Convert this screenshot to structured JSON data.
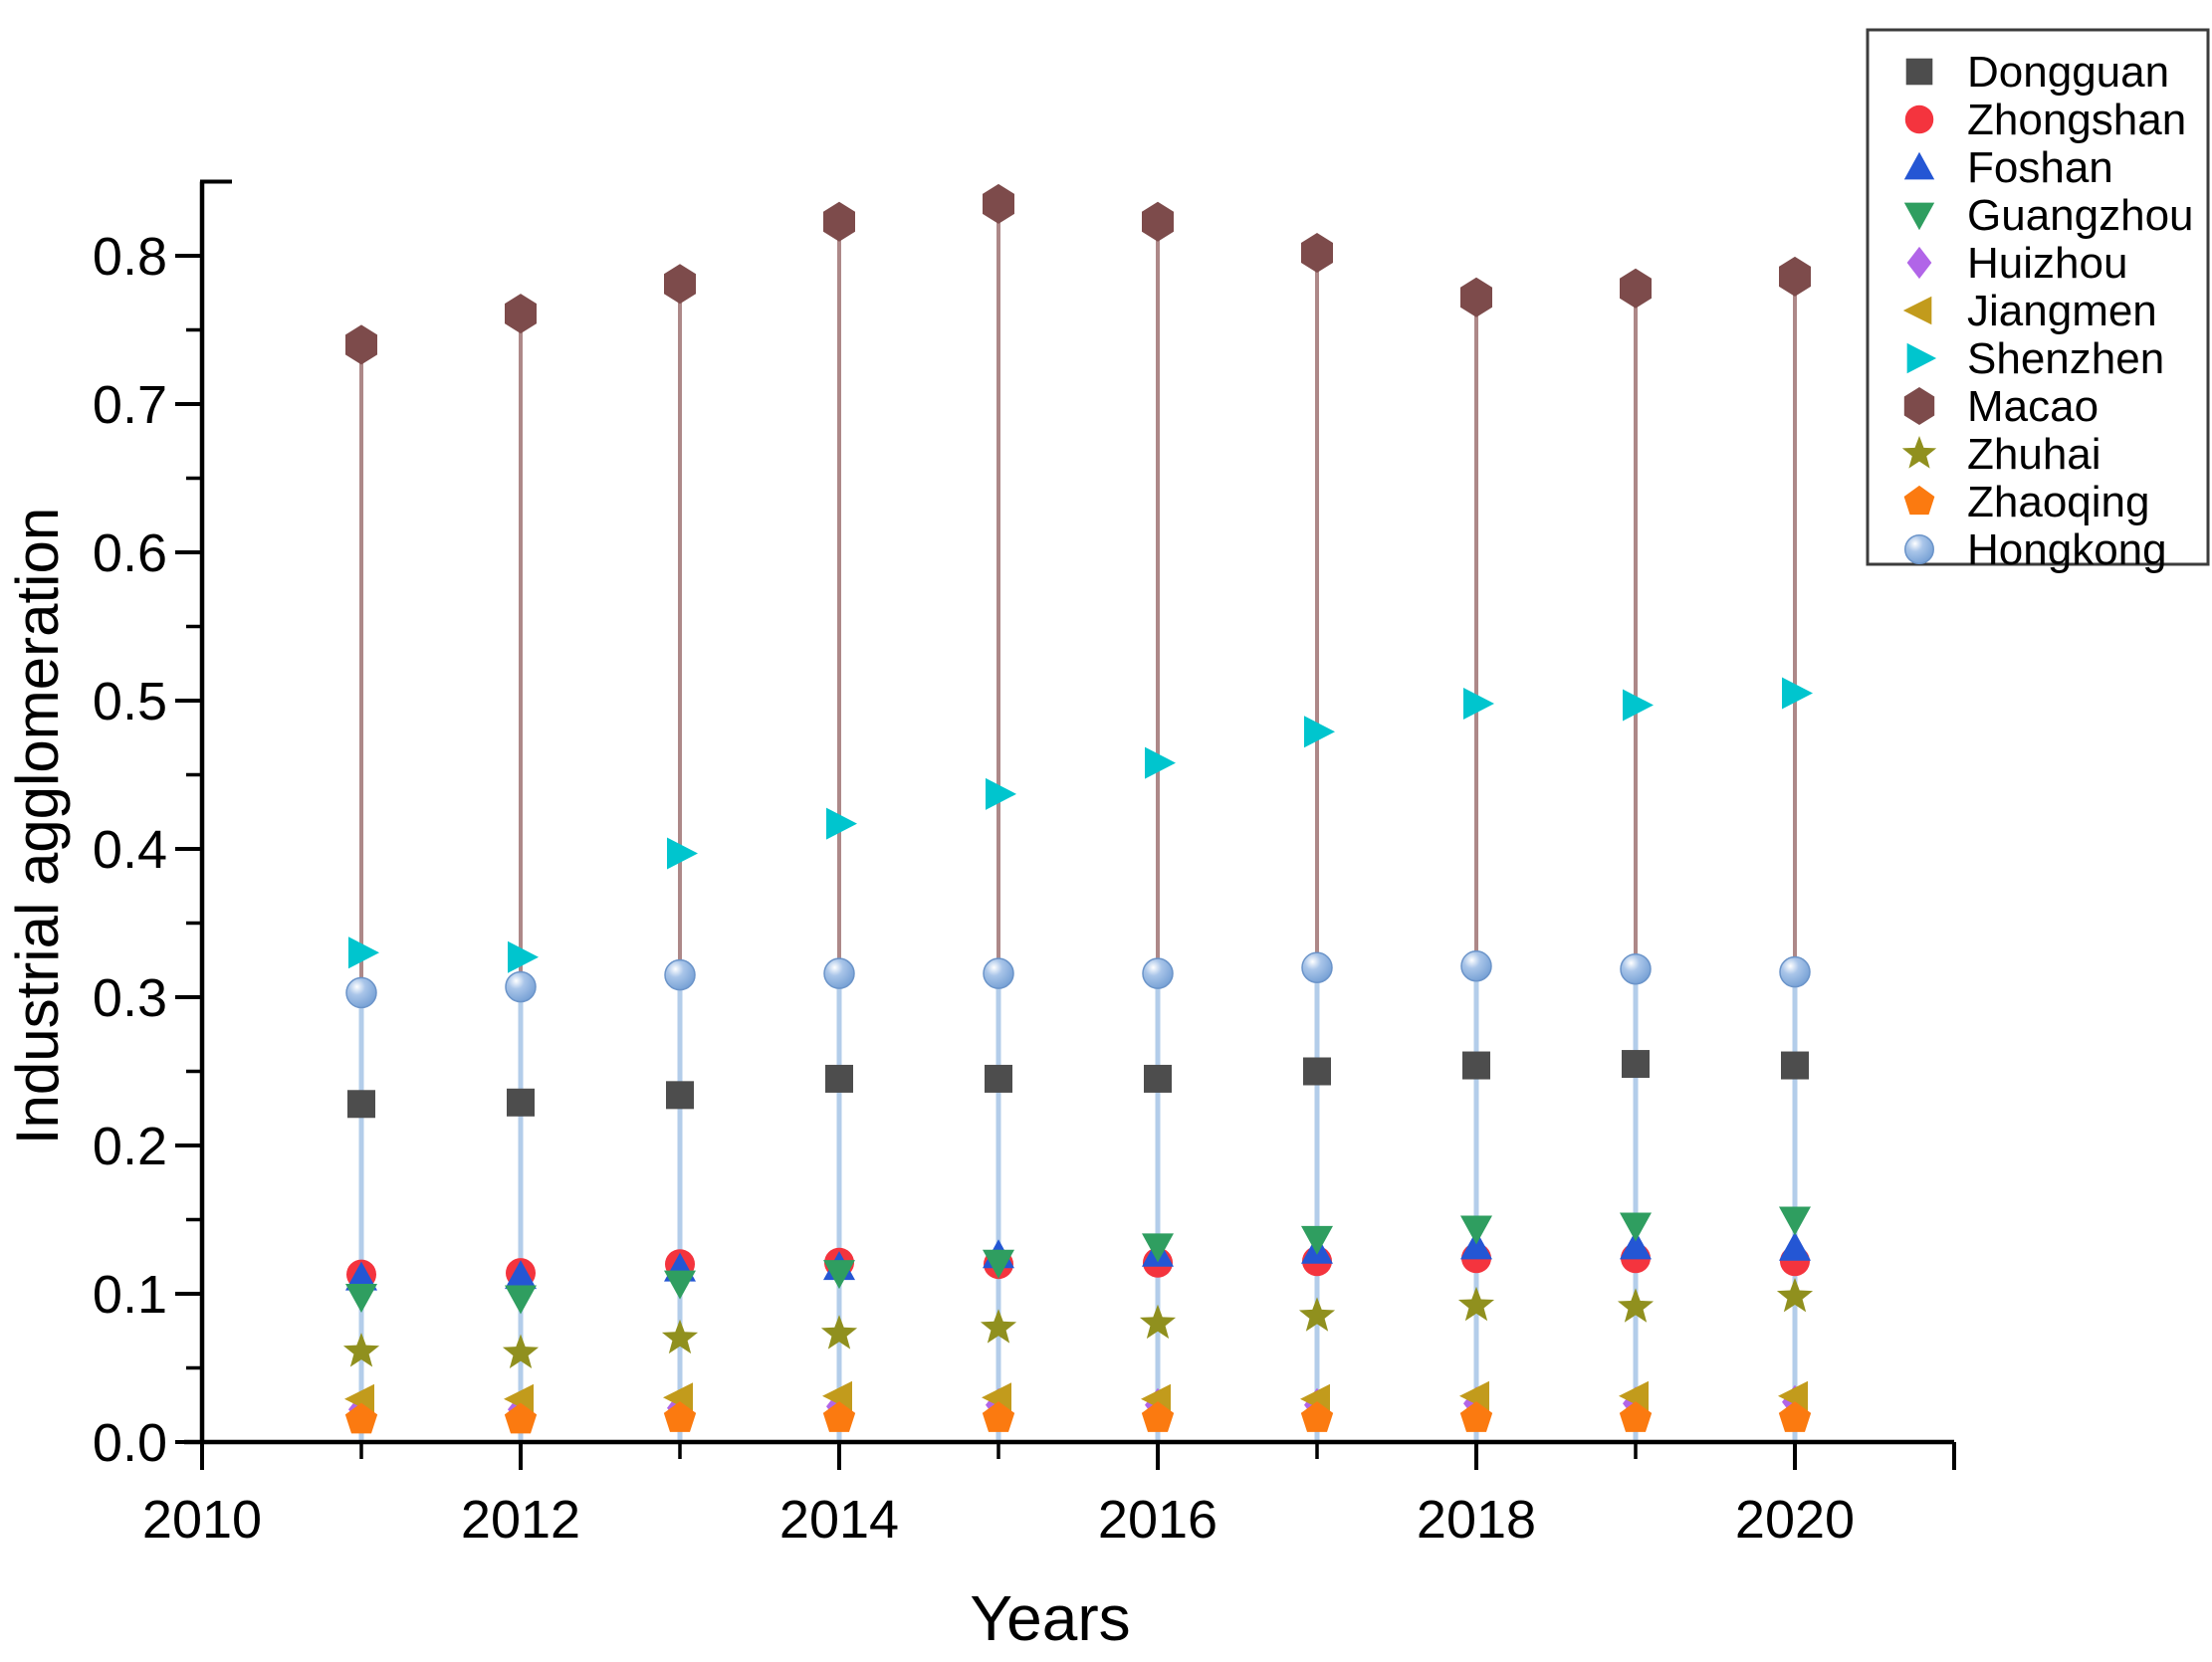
{
  "chart_data": {
    "type": "scatter",
    "subtype": "stem-drop-lines",
    "title": "",
    "xlabel": "Years",
    "ylabel": "Industrial agglomeration",
    "xlim": [
      2010,
      2021
    ],
    "ylim": [
      0.0,
      0.85
    ],
    "x_major_ticks": [
      2010,
      2012,
      2014,
      2016,
      2018,
      2020
    ],
    "x_minor_ticks": [
      2011,
      2013,
      2015,
      2017,
      2019,
      2021
    ],
    "y_major_ticks": [
      0.0,
      0.1,
      0.2,
      0.3,
      0.4,
      0.5,
      0.6,
      0.7,
      0.8
    ],
    "y_minor_ticks": [
      0.05,
      0.15,
      0.25,
      0.35,
      0.45,
      0.55,
      0.65,
      0.75
    ],
    "grid": false,
    "legend_position": "top-right",
    "x": [
      2011,
      2012,
      2013,
      2014,
      2015,
      2016,
      2017,
      2018,
      2019,
      2020
    ],
    "series": [
      {
        "name": "Dongguan",
        "marker": "square",
        "color": "#4d4d4d",
        "values": [
          0.228,
          0.229,
          0.234,
          0.245,
          0.245,
          0.245,
          0.25,
          0.254,
          0.255,
          0.254
        ]
      },
      {
        "name": "Zhongshan",
        "marker": "circle",
        "color": "#f4343e",
        "values": [
          0.113,
          0.114,
          0.12,
          0.121,
          0.12,
          0.121,
          0.122,
          0.124,
          0.124,
          0.122
        ]
      },
      {
        "name": "Foshan",
        "marker": "triangle-up",
        "color": "#2456d4",
        "values": [
          0.111,
          0.112,
          0.117,
          0.118,
          0.126,
          0.127,
          0.129,
          0.132,
          0.132,
          0.131
        ]
      },
      {
        "name": "Guangzhou",
        "marker": "triangle-down",
        "color": "#2f9e60",
        "values": [
          0.098,
          0.097,
          0.107,
          0.114,
          0.121,
          0.132,
          0.137,
          0.144,
          0.146,
          0.15
        ]
      },
      {
        "name": "Huizhou",
        "marker": "diamond",
        "color": "#b165e8",
        "values": [
          0.022,
          0.022,
          0.023,
          0.024,
          0.025,
          0.025,
          0.025,
          0.026,
          0.026,
          0.027
        ]
      },
      {
        "name": "Jiangmen",
        "marker": "triangle-left",
        "color": "#c29b1c",
        "values": [
          0.029,
          0.029,
          0.03,
          0.031,
          0.03,
          0.029,
          0.029,
          0.031,
          0.031,
          0.031
        ]
      },
      {
        "name": "Shenzhen",
        "marker": "triangle-right",
        "color": "#00c5ce",
        "values": [
          0.33,
          0.327,
          0.397,
          0.417,
          0.437,
          0.458,
          0.479,
          0.498,
          0.497,
          0.505
        ]
      },
      {
        "name": "Macao",
        "marker": "hexagon",
        "color": "#7d4b4b",
        "stem_color": "#ad8888",
        "values": [
          0.74,
          0.761,
          0.781,
          0.823,
          0.835,
          0.823,
          0.802,
          0.772,
          0.778,
          0.786
        ]
      },
      {
        "name": "Zhuhai",
        "marker": "star",
        "color": "#90901e",
        "values": [
          0.061,
          0.06,
          0.07,
          0.073,
          0.077,
          0.08,
          0.085,
          0.092,
          0.091,
          0.098
        ]
      },
      {
        "name": "Zhaoqing",
        "marker": "pentagon",
        "color": "#fb7a10",
        "values": [
          0.015,
          0.015,
          0.016,
          0.016,
          0.016,
          0.016,
          0.016,
          0.016,
          0.016,
          0.016
        ]
      },
      {
        "name": "Hongkong",
        "marker": "sphere",
        "color": "#87aede",
        "stem_color": "#b3cdea",
        "values": [
          0.303,
          0.307,
          0.315,
          0.316,
          0.316,
          0.316,
          0.32,
          0.321,
          0.319,
          0.317
        ]
      }
    ]
  }
}
